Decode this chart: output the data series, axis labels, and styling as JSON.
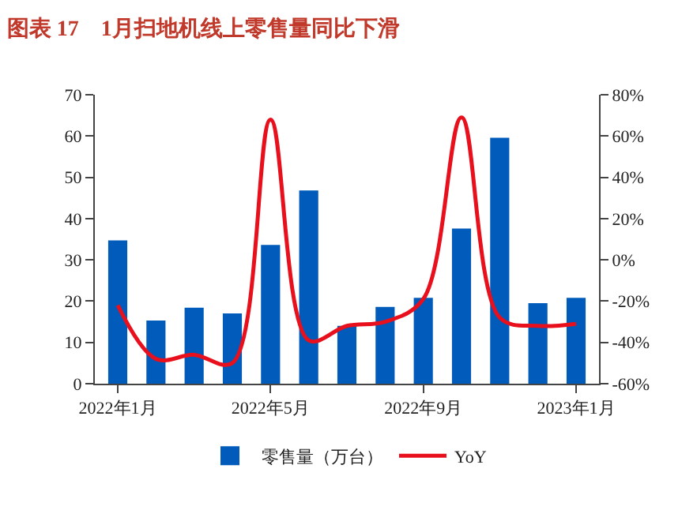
{
  "chart_data": {
    "type": "bar",
    "title": "图表 17　1月扫地机线上零售量同比下滑",
    "categories": [
      "2022年1月",
      null,
      null,
      null,
      "2022年5月",
      null,
      null,
      null,
      "2022年9月",
      null,
      null,
      null,
      "2023年1月"
    ],
    "series": [
      {
        "name": "零售量（万台）",
        "color": "#005bbb",
        "values": [
          34.7,
          15.3,
          18.4,
          17,
          33.6,
          46.8,
          14,
          18.6,
          20.8,
          37.6,
          59.6,
          19.5,
          20.8
        ]
      },
      {
        "name": "YoY",
        "type": "line",
        "axis": "y2",
        "color": "#e8101c",
        "values": [
          -22,
          -48,
          -46,
          -50,
          68,
          -39,
          -32,
          -30,
          -19,
          69,
          -28,
          -32,
          -31
        ]
      }
    ],
    "ylim": [
      0,
      70
    ],
    "yticks": [
      0,
      10,
      20,
      30,
      40,
      50,
      60,
      70
    ],
    "y2lim": [
      -60,
      80
    ],
    "y2ticks": [
      {
        "value": -60,
        "label": "-60%"
      },
      {
        "value": -40,
        "label": "-40%"
      },
      {
        "value": -20,
        "label": "-20%"
      },
      {
        "value": 0,
        "label": "0%"
      },
      {
        "value": 20,
        "label": "20%"
      },
      {
        "value": 40,
        "label": "40%"
      },
      {
        "value": 60,
        "label": "60%"
      },
      {
        "value": 80,
        "label": "80%"
      }
    ],
    "legend": "bottom",
    "marker": "none",
    "line_style": "solid"
  }
}
